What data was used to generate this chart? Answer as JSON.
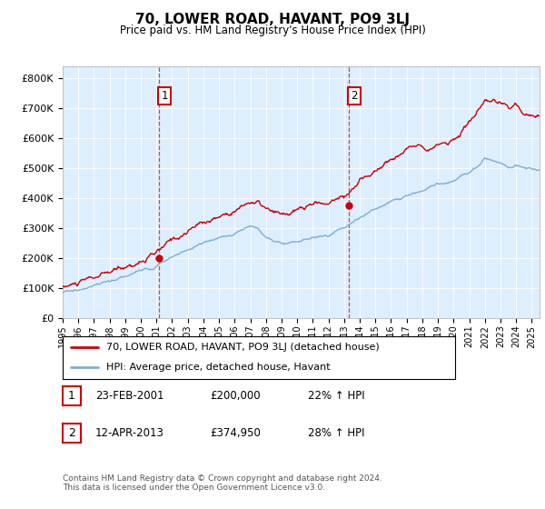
{
  "title": "70, LOWER ROAD, HAVANT, PO9 3LJ",
  "subtitle": "Price paid vs. HM Land Registry's House Price Index (HPI)",
  "ylabel_ticks": [
    "£0",
    "£100K",
    "£200K",
    "£300K",
    "£400K",
    "£500K",
    "£600K",
    "£700K",
    "£800K"
  ],
  "ylim": [
    0,
    840000
  ],
  "xlim_start": 1995.0,
  "xlim_end": 2025.5,
  "red_color": "#cc0000",
  "blue_color": "#7bafd4",
  "bg_color": "#ddeeff",
  "sale1_x": 2001.14,
  "sale1_y": 200000,
  "sale1_label": "1",
  "sale2_x": 2013.28,
  "sale2_y": 374950,
  "sale2_label": "2",
  "legend_line1": "70, LOWER ROAD, HAVANT, PO9 3LJ (detached house)",
  "legend_line2": "HPI: Average price, detached house, Havant",
  "table_row1": [
    "1",
    "23-FEB-2001",
    "£200,000",
    "22% ↑ HPI"
  ],
  "table_row2": [
    "2",
    "12-APR-2013",
    "£374,950",
    "28% ↑ HPI"
  ],
  "footer": "Contains HM Land Registry data © Crown copyright and database right 2024.\nThis data is licensed under the Open Government Licence v3.0.",
  "xtick_years": [
    1995,
    1996,
    1997,
    1998,
    1999,
    2000,
    2001,
    2002,
    2003,
    2004,
    2005,
    2006,
    2007,
    2008,
    2009,
    2010,
    2011,
    2012,
    2013,
    2014,
    2015,
    2016,
    2017,
    2018,
    2019,
    2020,
    2021,
    2022,
    2023,
    2024,
    2025
  ],
  "red_piecewise": {
    "t": [
      1995.0,
      1996.0,
      1997.0,
      1998.0,
      1999.0,
      2000.0,
      2001.14,
      2002.0,
      2003.0,
      2004.0,
      2005.0,
      2006.0,
      2007.0,
      2007.5,
      2008.0,
      2008.5,
      2009.0,
      2009.5,
      2010.0,
      2010.5,
      2011.0,
      2011.5,
      2012.0,
      2012.5,
      2013.28,
      2014.0,
      2015.0,
      2016.0,
      2017.0,
      2018.0,
      2019.0,
      2020.0,
      2020.5,
      2021.0,
      2021.5,
      2022.0,
      2022.5,
      2023.0,
      2023.5,
      2024.0,
      2024.5,
      2025.5
    ],
    "v": [
      105000,
      115000,
      125000,
      135000,
      150000,
      175000,
      200000,
      230000,
      260000,
      290000,
      310000,
      340000,
      370000,
      365000,
      340000,
      320000,
      305000,
      310000,
      315000,
      320000,
      330000,
      335000,
      330000,
      350000,
      374950,
      410000,
      450000,
      490000,
      520000,
      545000,
      555000,
      575000,
      600000,
      640000,
      660000,
      680000,
      670000,
      665000,
      640000,
      660000,
      640000,
      630000
    ]
  },
  "blue_piecewise": {
    "t": [
      1995.0,
      1996.0,
      1997.0,
      1998.0,
      1999.0,
      2000.0,
      2001.0,
      2002.0,
      2003.0,
      2004.0,
      2005.0,
      2006.0,
      2007.0,
      2007.5,
      2008.0,
      2008.5,
      2009.0,
      2009.5,
      2010.0,
      2010.5,
      2011.0,
      2011.5,
      2012.0,
      2012.5,
      2013.0,
      2014.0,
      2015.0,
      2016.0,
      2017.0,
      2018.0,
      2019.0,
      2020.0,
      2020.5,
      2021.0,
      2021.5,
      2022.0,
      2022.5,
      2023.0,
      2023.5,
      2024.0,
      2024.5,
      2025.5
    ],
    "v": [
      85000,
      95000,
      105000,
      115000,
      128000,
      148000,
      165000,
      190000,
      215000,
      240000,
      260000,
      280000,
      300000,
      295000,
      270000,
      250000,
      240000,
      245000,
      250000,
      255000,
      260000,
      265000,
      260000,
      275000,
      290000,
      320000,
      350000,
      375000,
      395000,
      415000,
      430000,
      440000,
      455000,
      475000,
      500000,
      530000,
      520000,
      510000,
      495000,
      505000,
      495000,
      490000
    ]
  }
}
